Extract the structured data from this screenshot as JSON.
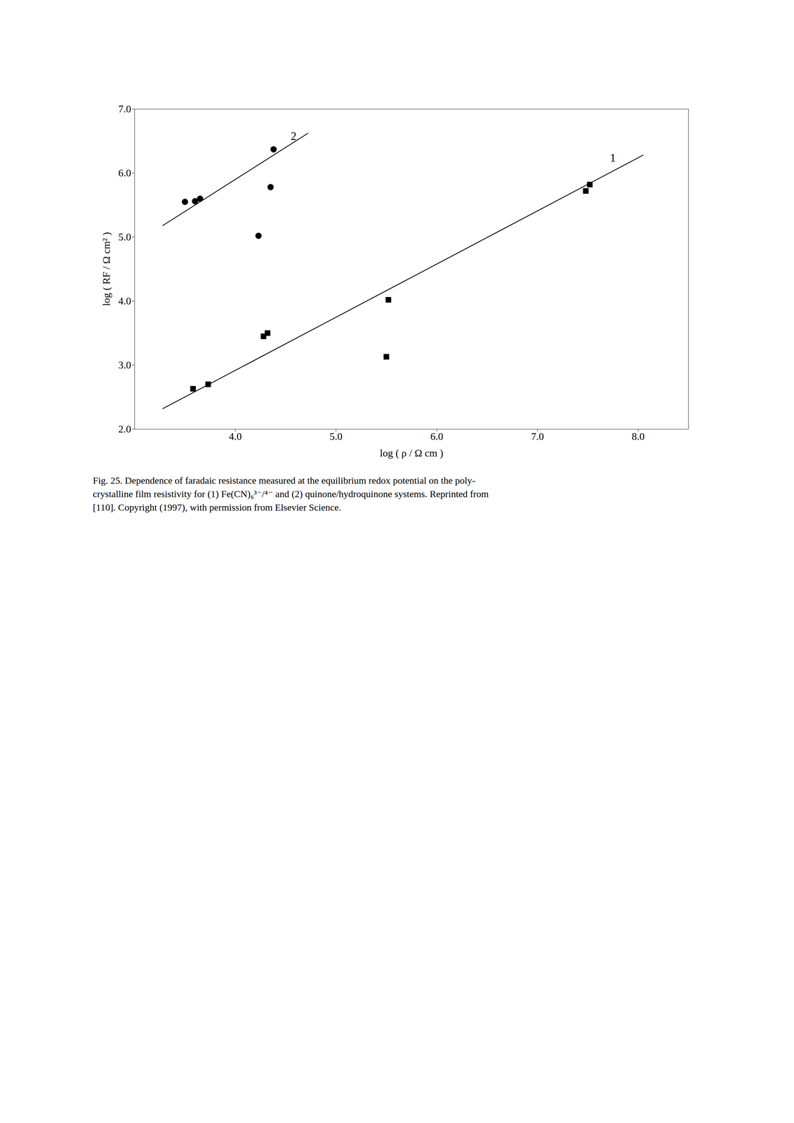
{
  "chart_data": {
    "type": "scatter",
    "caption": "Fig. 25. Dependence of faradaic resistance measured at the equilibrium redox potential on the poly-\ncrystalline film resistivity for (1) Fe(CN)₆³⁻/⁴⁻ and (2) quinone/hydroquinone systems. Reprinted from\n[110]. Copyright (1997), with permission from Elsevier Science.",
    "x_label": "log ( ρ / Ω cm )",
    "y_label": "log ( RF / Ω cm² )",
    "xlim": [
      3.0,
      8.5
    ],
    "ylim": [
      2.0,
      7.0
    ],
    "xticks": [
      4,
      5,
      6,
      7,
      8
    ],
    "yticks": [
      2,
      3,
      4,
      5,
      6,
      7
    ],
    "grid": false,
    "series": [
      {
        "type": "line",
        "line_style": "solid",
        "color": "black",
        "x": [
          3.28,
          8.05
        ],
        "values": [
          2.32,
          6.28
        ]
      },
      {
        "type": "line",
        "line_style": "solid",
        "color": "black",
        "x": [
          3.28,
          4.72
        ],
        "values": [
          5.18,
          6.62
        ]
      },
      {
        "type": "scatter",
        "marker": "square",
        "color": "black",
        "x": [
          3.58,
          3.73,
          4.28,
          4.32,
          5.5,
          5.52,
          7.48,
          7.52
        ],
        "values": [
          2.63,
          2.7,
          3.45,
          3.5,
          3.13,
          4.02,
          5.72,
          5.82
        ]
      },
      {
        "type": "scatter",
        "marker": "circle",
        "color": "black",
        "x": [
          3.5,
          3.6,
          3.65,
          4.23,
          4.35,
          4.38
        ],
        "values": [
          5.55,
          5.56,
          5.6,
          5.02,
          5.78,
          6.37
        ]
      }
    ],
    "annotations": [
      {
        "text": "1",
        "x": 7.72,
        "y": 6.18
      },
      {
        "text": "2",
        "x": 4.55,
        "y": 6.52
      }
    ]
  }
}
